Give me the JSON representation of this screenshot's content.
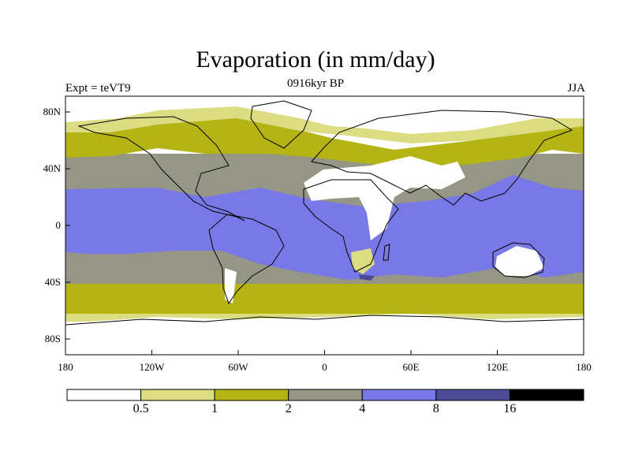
{
  "title": "Evaporation (in mm/day)",
  "experiment": "Expt = teVT9",
  "period": "0916kyr BP",
  "season": "JJA",
  "axes": {
    "lat_labels": [
      "80N",
      "40N",
      "0",
      "40S",
      "80S"
    ],
    "lon_labels": [
      "180",
      "120W",
      "60W",
      "0",
      "60E",
      "120E",
      "180"
    ]
  },
  "colorbar": {
    "colors": [
      "#ffffff",
      "#dcdc82",
      "#b4b414",
      "#969687",
      "#7878e6",
      "#4b4b96",
      "#000000"
    ],
    "labels": [
      "0.5",
      "1",
      "2",
      "4",
      "8",
      "16"
    ]
  },
  "palette": {
    "c0": "#ffffff",
    "c05": "#dcdc82",
    "c1": "#b4b414",
    "c2": "#969687",
    "c4": "#7878e6",
    "c8": "#4b4b96",
    "c16": "#000000"
  }
}
